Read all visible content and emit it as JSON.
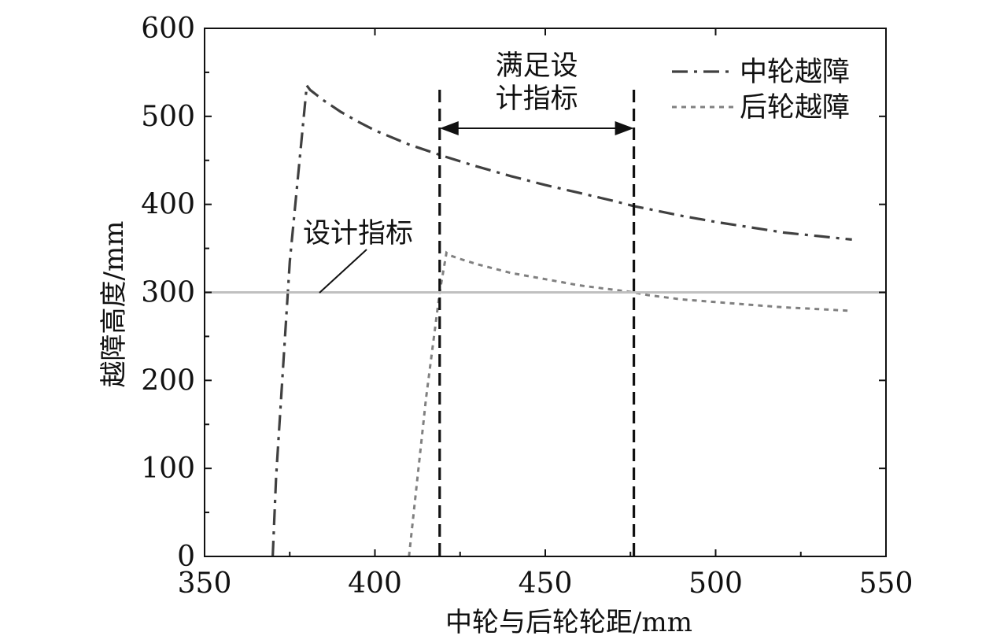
{
  "chart_data": {
    "type": "line",
    "xlabel": "中轮与后轮轮距/mm",
    "ylabel": "越障高度/mm",
    "xlim": [
      350,
      550
    ],
    "ylim": [
      0,
      600
    ],
    "xticks": [
      350,
      400,
      450,
      500,
      550
    ],
    "yticks": [
      0,
      100,
      200,
      300,
      400,
      500,
      600
    ],
    "grid": false,
    "legend_position": "top-right",
    "series": [
      {
        "name": "中轮越障",
        "style": "dash-dot",
        "color": "#404040",
        "x": [
          370,
          371,
          375,
          380,
          381,
          385,
          390,
          395,
          400,
          410,
          420,
          430,
          440,
          450,
          460,
          470,
          476,
          480,
          490,
          500,
          510,
          520,
          530,
          540
        ],
        "y": [
          0,
          90,
          335,
          535,
          530,
          518,
          505,
          494,
          484,
          468,
          455,
          443,
          432,
          422,
          413,
          404,
          398,
          395,
          387,
          380,
          374,
          368,
          364,
          360
        ]
      },
      {
        "name": "后轮越障",
        "style": "dotted",
        "color": "#808080",
        "x": [
          410,
          415,
          419,
          421,
          422,
          425,
          430,
          440,
          450,
          460,
          470,
          476,
          480,
          490,
          500,
          510,
          520,
          530,
          540
        ],
        "y": [
          0,
          180,
          300,
          345,
          342,
          338,
          332,
          322,
          315,
          308,
          303,
          300,
          297,
          292,
          289,
          286,
          283,
          281,
          279
        ]
      },
      {
        "name": "",
        "style": "solid",
        "color": "#c0c0c0",
        "x": [
          350,
          550
        ],
        "y": [
          300,
          300
        ]
      }
    ],
    "vlines": [
      419,
      476
    ],
    "annotations": {
      "design_line_label": "设计指标",
      "range_label": [
        "满足设",
        "计指标"
      ]
    }
  }
}
